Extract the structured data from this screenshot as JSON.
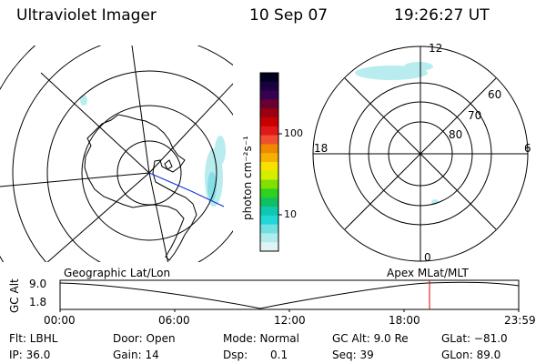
{
  "header": {
    "instrument": "Ultraviolet Imager",
    "date": "10 Sep 07",
    "time": "19:26:27 UT"
  },
  "left_map": {
    "caption": "Geographic Lat/Lon"
  },
  "right_map": {
    "caption": "Apex MLat/MLT",
    "mlt_labels": {
      "top": "12",
      "left": "18",
      "right": "6",
      "bottom": "0"
    },
    "lat_labels": [
      "60",
      "70",
      "80"
    ]
  },
  "colorbar": {
    "unit_label": "photon cm⁻²s⁻¹",
    "ticks": [
      "100",
      "10"
    ],
    "colors": [
      "#000020",
      "#1a0040",
      "#3a0050",
      "#6a0030",
      "#9a0010",
      "#c80000",
      "#e01818",
      "#f05030",
      "#f08800",
      "#f8b000",
      "#f8e000",
      "#d0f000",
      "#80e000",
      "#30d020",
      "#10c060",
      "#10c8b0",
      "#20d8d8",
      "#70e0e0",
      "#b0ecec",
      "#e0f4f4"
    ]
  },
  "altitude_plot": {
    "ylabel": "GC Alt",
    "y_top": "9.0",
    "y_bottom": "1.8",
    "x_ticks": [
      "00:00",
      "06:00",
      "12:00",
      "18:00",
      "23:59"
    ],
    "marker_color": "#e00000"
  },
  "status": {
    "filter": "Flt: LBHL",
    "ip": "IP: 36.0",
    "door": "Door: Open",
    "gain": "Gain: 14",
    "mode": "Mode: Normal",
    "dsp_label": "Dsp:",
    "dsp_value": "0.1",
    "gc_alt": "GC Alt: 9.0 Re",
    "seq": "Seq: 39",
    "glat": "GLat: −81.0",
    "glon": "GLon: 89.0"
  }
}
